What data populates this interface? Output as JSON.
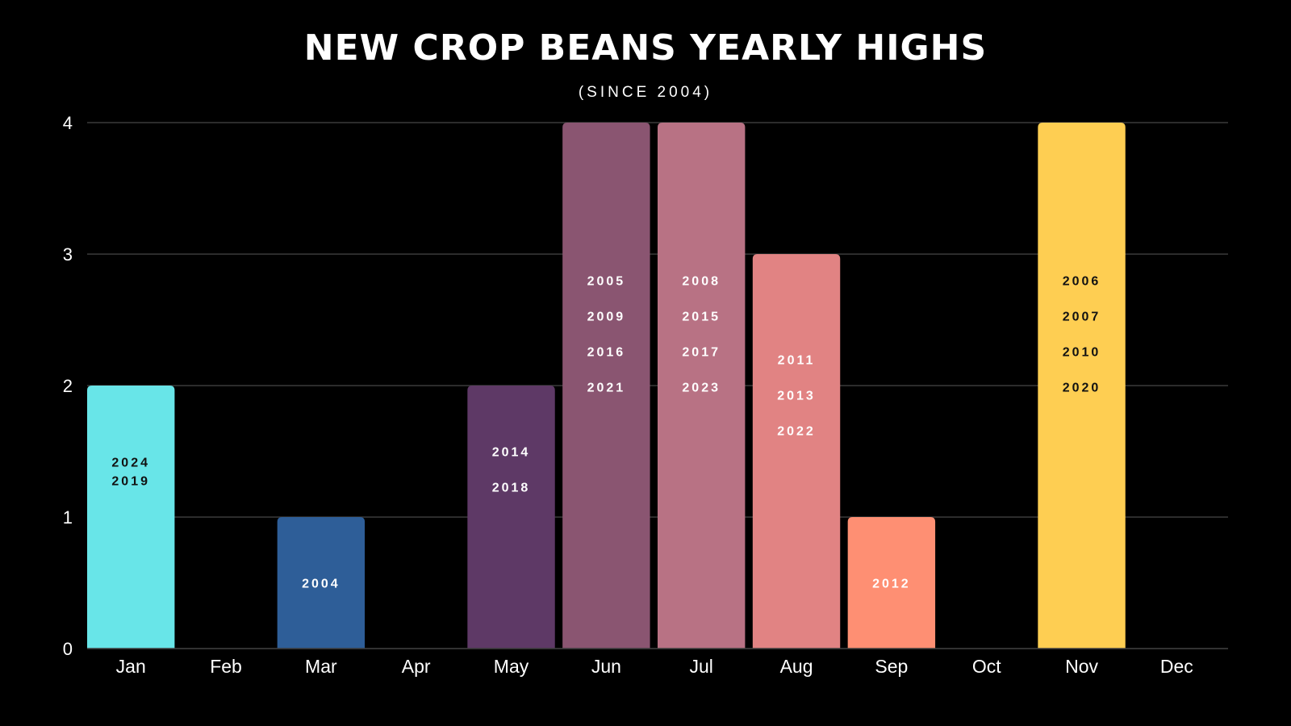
{
  "chart_data": {
    "type": "bar",
    "title": "NEW CROP BEANS YEARLY HIGHS",
    "subtitle": "(SINCE 2004)",
    "categories": [
      "Jan",
      "Feb",
      "Mar",
      "Apr",
      "May",
      "Jun",
      "Jul",
      "Aug",
      "Sep",
      "Oct",
      "Nov",
      "Dec"
    ],
    "values": [
      2,
      0,
      1,
      0,
      2,
      4,
      4,
      3,
      1,
      0,
      4,
      0
    ],
    "bar_colors": [
      "#68E5E8",
      null,
      "#2E5E98",
      null,
      "#5E3966",
      "#8A5571",
      "#B87284",
      "#E18383",
      "#FE8F73",
      null,
      "#FECE52",
      null
    ],
    "label_colors": [
      "#111111",
      null,
      "#FFFFFF",
      null,
      "#FFFFFF",
      "#FFFFFF",
      "#FFFFFF",
      "#FFFFFF",
      "#FFFFFF",
      null,
      "#111111",
      null
    ],
    "year_labels": [
      [
        "2024",
        "2019"
      ],
      [],
      [
        "2004"
      ],
      [],
      [
        "2014",
        "2018"
      ],
      [
        "2005",
        "2009",
        "2016",
        "2021"
      ],
      [
        "2008",
        "2015",
        "2017",
        "2023"
      ],
      [
        "2011",
        "2013",
        "2022"
      ],
      [
        "2012"
      ],
      [],
      [
        "2006",
        "2007",
        "2010",
        "2020"
      ],
      []
    ],
    "yticks": [
      0,
      1,
      2,
      3,
      4
    ],
    "ylim": [
      0,
      4
    ],
    "grid": true,
    "background": "#000000",
    "grid_color": "#3A3A3A",
    "xlabel": "",
    "ylabel": ""
  }
}
